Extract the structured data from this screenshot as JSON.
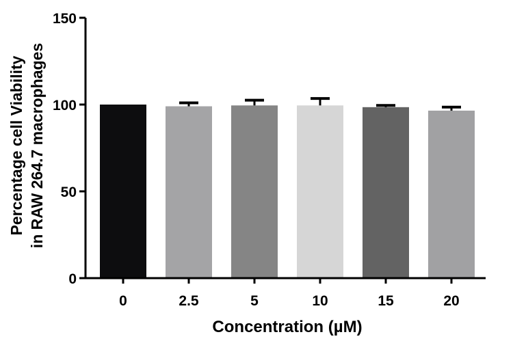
{
  "chart_data": {
    "type": "bar",
    "xlabel": "Concentration (µM)",
    "ylabel_line1": "Percentage cell Viability",
    "ylabel_line2": "in RAW 264.7 macrophages",
    "categories": [
      "0",
      "2.5",
      "5",
      "10",
      "15",
      "20"
    ],
    "values": [
      100,
      99,
      99.5,
      99.5,
      98.5,
      96.5
    ],
    "errors": [
      0,
      2,
      3,
      4,
      1,
      2
    ],
    "colors": [
      "#0d0d0f",
      "#a4a4a6",
      "#858585",
      "#d6d6d6",
      "#636363",
      "#a1a1a3"
    ],
    "ylim": [
      0,
      150
    ],
    "yticks": [
      0,
      50,
      100,
      150
    ],
    "grid": false,
    "legend": "none"
  }
}
